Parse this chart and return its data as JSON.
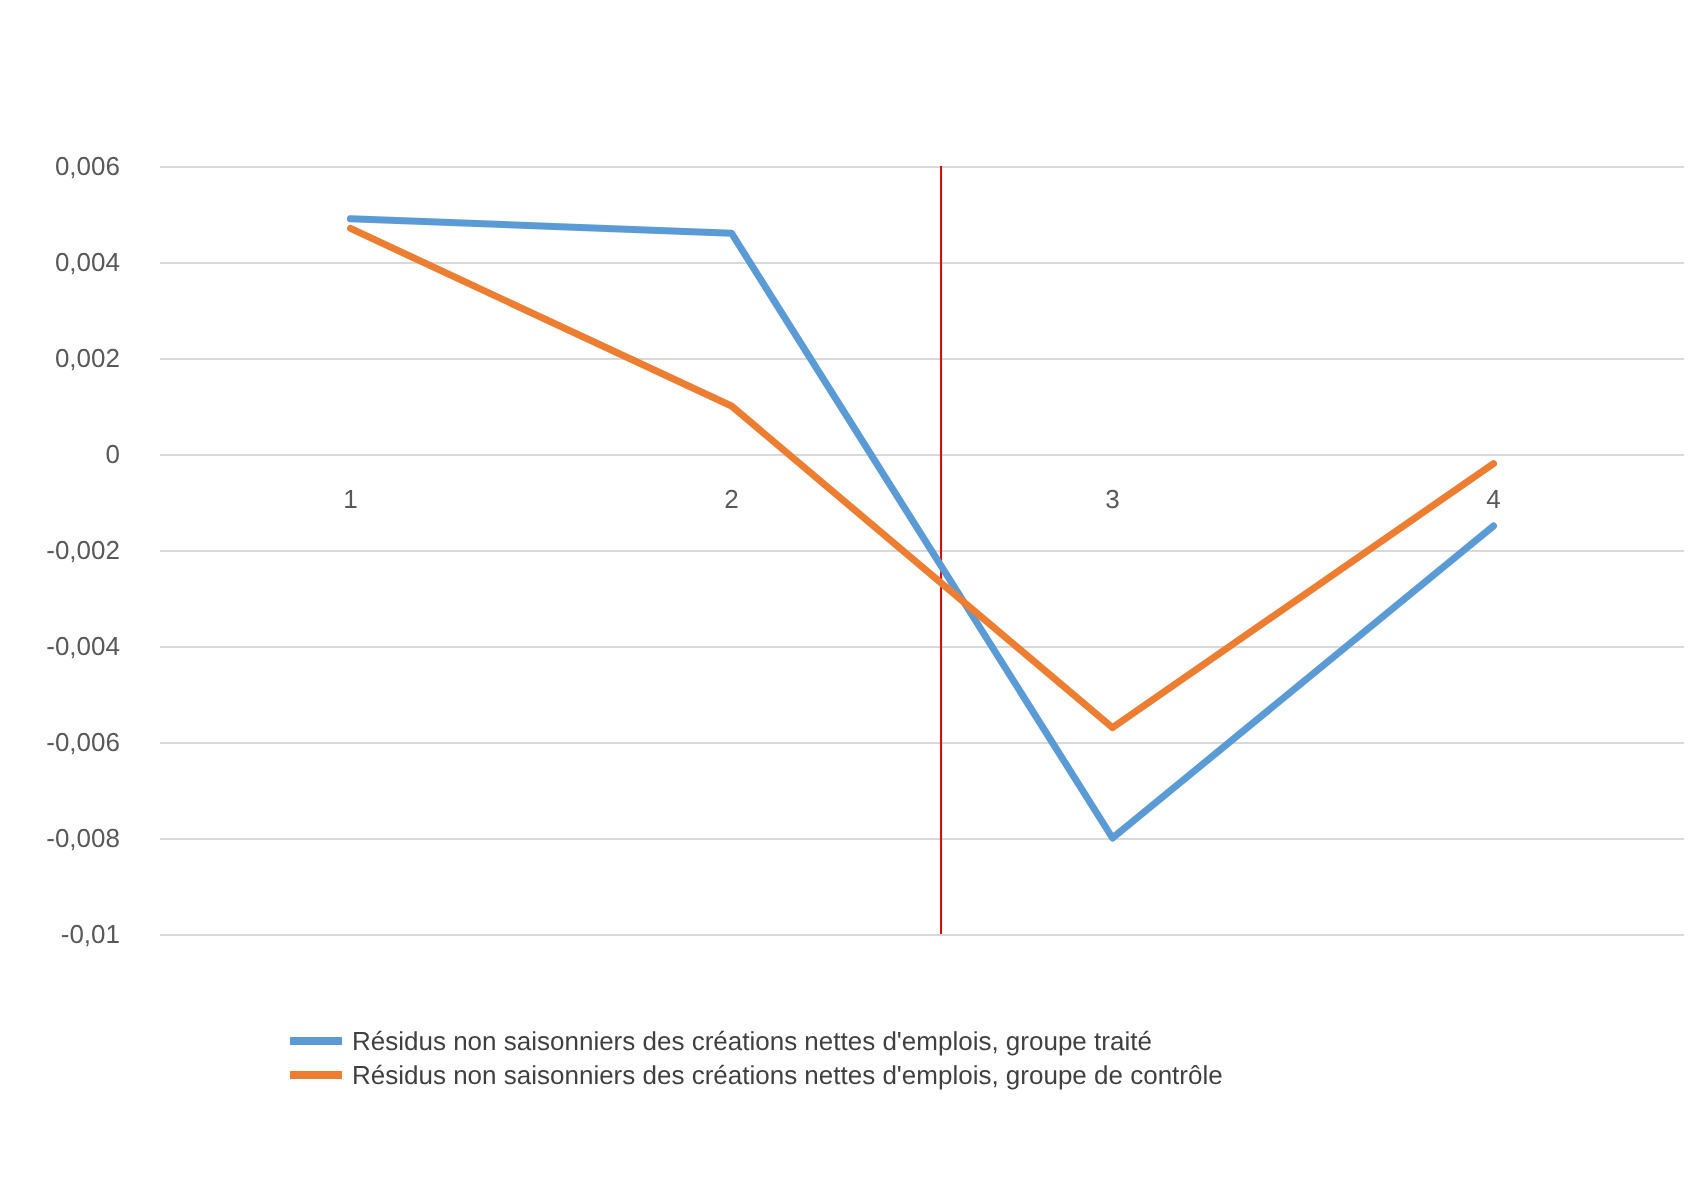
{
  "chart_data": {
    "type": "line",
    "x": [
      1,
      2,
      3,
      4
    ],
    "xlim": [
      0.5,
      4.5
    ],
    "xticks": [
      1,
      2,
      3,
      4
    ],
    "ylim": [
      -0.01,
      0.006
    ],
    "yticks": [
      {
        "value": -0.01,
        "label": "-0,01"
      },
      {
        "value": -0.008,
        "label": "-0,008"
      },
      {
        "value": -0.006,
        "label": "-0,006"
      },
      {
        "value": -0.004,
        "label": "-0,004"
      },
      {
        "value": -0.002,
        "label": "-0,002"
      },
      {
        "value": 0,
        "label": "0"
      },
      {
        "value": 0.002,
        "label": "0,002"
      },
      {
        "value": 0.004,
        "label": "0,004"
      },
      {
        "value": 0.006,
        "label": "0,006"
      }
    ],
    "series": [
      {
        "name": "Résidus non saisonniers des créations nettes d'emplois, groupe traité",
        "color": "#5b9bd5",
        "values": [
          0.0049,
          0.0046,
          -0.008,
          -0.0015
        ]
      },
      {
        "name": "Résidus non saisonniers des créations nettes d'emplois, groupe de contrôle",
        "color": "#ed7d31",
        "values": [
          0.0047,
          0.001,
          -0.0057,
          -0.0002
        ]
      }
    ],
    "ref_lines": [
      {
        "axis": "x",
        "value": 2.55,
        "color": "#e00000"
      }
    ],
    "grid": "y",
    "legend": "bottom",
    "marker": "none",
    "line_style": "solid"
  }
}
